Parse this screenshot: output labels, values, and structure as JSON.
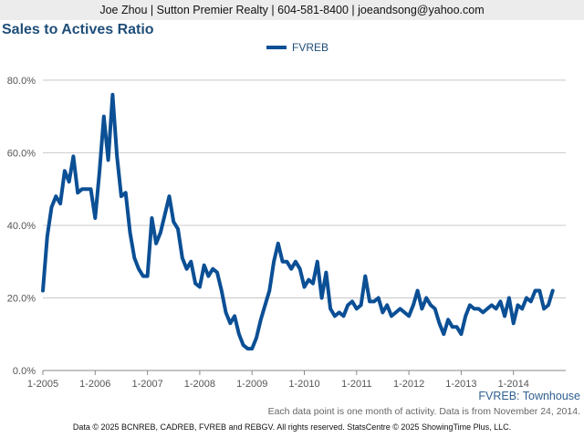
{
  "header": {
    "contact": "Joe Zhou | Sutton Premier Realty | 604-581-8400 | joeandsong@yahoo.com"
  },
  "chart_data": {
    "type": "line",
    "title": "Sales to Actives Ratio",
    "xlabel": "",
    "ylabel": "",
    "ylim": [
      0,
      0.85
    ],
    "y_ticks": [
      0,
      0.2,
      0.4,
      0.6,
      0.8
    ],
    "y_tick_labels": [
      "0.0%",
      "20.0%",
      "40.0%",
      "60.0%",
      "80.0%"
    ],
    "x_tick_labels": [
      "1-2005",
      "1-2006",
      "1-2007",
      "1-2008",
      "1-2009",
      "1-2010",
      "1-2011",
      "1-2012",
      "1-2013",
      "1-2014"
    ],
    "grid": true,
    "legend_position": "top-center",
    "series": [
      {
        "name": "FVREB",
        "color": "#0b4f95",
        "start": "2005-01",
        "values": [
          0.22,
          0.37,
          0.45,
          0.48,
          0.46,
          0.55,
          0.52,
          0.59,
          0.49,
          0.5,
          0.5,
          0.5,
          0.42,
          0.55,
          0.7,
          0.58,
          0.76,
          0.59,
          0.48,
          0.49,
          0.38,
          0.31,
          0.28,
          0.26,
          0.26,
          0.42,
          0.35,
          0.38,
          0.43,
          0.48,
          0.41,
          0.39,
          0.31,
          0.28,
          0.3,
          0.24,
          0.23,
          0.29,
          0.26,
          0.28,
          0.27,
          0.22,
          0.16,
          0.13,
          0.15,
          0.1,
          0.07,
          0.06,
          0.06,
          0.09,
          0.14,
          0.18,
          0.22,
          0.3,
          0.35,
          0.3,
          0.3,
          0.28,
          0.3,
          0.28,
          0.23,
          0.25,
          0.24,
          0.3,
          0.2,
          0.27,
          0.17,
          0.15,
          0.16,
          0.15,
          0.18,
          0.19,
          0.17,
          0.18,
          0.26,
          0.19,
          0.19,
          0.2,
          0.16,
          0.18,
          0.15,
          0.16,
          0.17,
          0.16,
          0.15,
          0.18,
          0.22,
          0.17,
          0.2,
          0.18,
          0.17,
          0.13,
          0.1,
          0.14,
          0.12,
          0.12,
          0.1,
          0.15,
          0.18,
          0.17,
          0.17,
          0.16,
          0.17,
          0.18,
          0.17,
          0.19,
          0.15,
          0.2,
          0.13,
          0.18,
          0.17,
          0.2,
          0.19,
          0.22,
          0.22,
          0.17,
          0.18,
          0.22
        ]
      }
    ]
  },
  "source_label": "FVREB: Townhouse",
  "note": "Each data point is one month of activity. Data is from November 24, 2014.",
  "footer": "Data © 2025 BCNREB, CADREB, FVREB and REBGV. All rights reserved. StatsCentre © 2025 ShowingTime Plus, LLC."
}
